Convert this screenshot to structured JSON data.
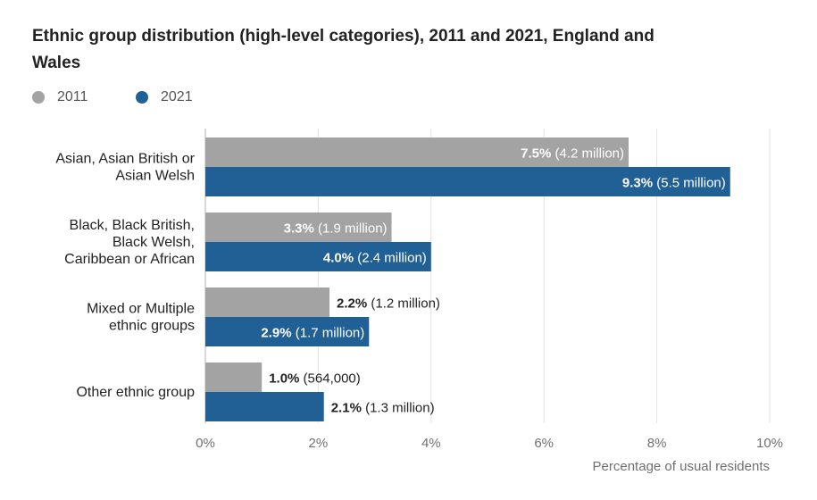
{
  "title": "Ethnic group distribution (high-level categories), 2011 and 2021, England and Wales",
  "chart_data": {
    "type": "bar",
    "orientation": "horizontal",
    "categories": [
      [
        "Asian, Asian British or",
        "Asian Welsh"
      ],
      [
        "Black, Black British,",
        "Black Welsh,",
        "Caribbean or African"
      ],
      [
        "Mixed or Multiple",
        "ethnic groups"
      ],
      [
        "Other ethnic group"
      ]
    ],
    "series": [
      {
        "name": "2011",
        "color": "#a3a3a3",
        "values": [
          7.5,
          3.3,
          2.2,
          1.0
        ],
        "pct_labels": [
          "7.5%",
          "3.3%",
          "2.2%",
          "1.0%"
        ],
        "count_labels": [
          "(4.2 million)",
          "(1.9 million)",
          "(1.2 million)",
          "(564,000)"
        ]
      },
      {
        "name": "2021",
        "color": "#206095",
        "values": [
          9.3,
          4.0,
          2.9,
          2.1
        ],
        "pct_labels": [
          "9.3%",
          "4.0%",
          "2.9%",
          "2.1%"
        ],
        "count_labels": [
          "(5.5 million)",
          "(2.4 million)",
          "(1.7 million)",
          "(1.3 million)"
        ]
      }
    ],
    "xlim": [
      0,
      10
    ],
    "xticks": [
      0,
      2,
      4,
      6,
      8,
      10
    ],
    "xtick_labels": [
      "0%",
      "2%",
      "4%",
      "6%",
      "8%",
      "10%"
    ],
    "xlabel": "Percentage of usual residents",
    "ylabel": "",
    "grid": true,
    "legend_position": "top-left"
  }
}
